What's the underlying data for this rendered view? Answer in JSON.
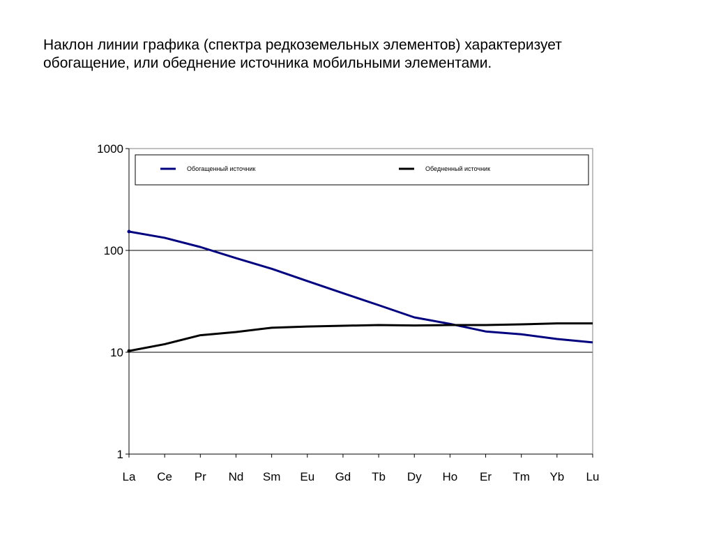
{
  "slide": {
    "title": "Наклон линии графика (спектра редкоземельных элементов) характеризует обогащение, или обеднение источника мобильными элементами."
  },
  "chart_data": {
    "type": "line",
    "yscale": "log",
    "ylim": [
      1,
      1000
    ],
    "yticks": [
      "1",
      "10",
      "100",
      "1000"
    ],
    "categories": [
      "La",
      "Ce",
      "Pr",
      "Nd",
      "Sm",
      "Eu",
      "Gd",
      "Tb",
      "Dy",
      "Ho",
      "Er",
      "Tm",
      "Yb",
      "Lu"
    ],
    "legend_position": "top",
    "series": [
      {
        "name": "Обогащенный источник",
        "color": "#00007f",
        "values": [
          153,
          133,
          108,
          84,
          66,
          50,
          38,
          29,
          22,
          19,
          16,
          15,
          13.5,
          12.5
        ]
      },
      {
        "name": "Обедненный источник",
        "color": "#000000",
        "values": [
          10.3,
          12,
          14.7,
          15.8,
          17.4,
          17.9,
          18.2,
          18.5,
          18.3,
          18.5,
          18.5,
          18.8,
          19.2,
          19.2
        ]
      }
    ]
  }
}
